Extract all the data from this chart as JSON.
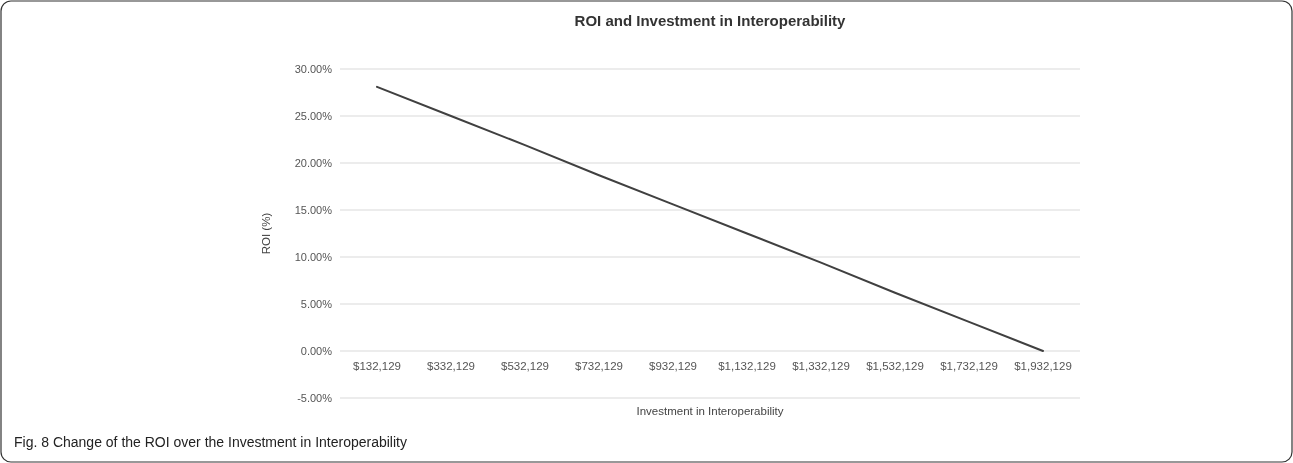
{
  "chart_data": {
    "type": "line",
    "title": "ROI and Investment in Interoperability",
    "xlabel": "Investment in Interoperability",
    "ylabel": "ROI (%)",
    "categories": [
      "$132,129",
      "$332,129",
      "$532,129",
      "$732,129",
      "$932,129",
      "$1,132,129",
      "$1,332,129",
      "$1,532,129",
      "$1,732,129",
      "$1,932,129"
    ],
    "series": [
      {
        "color": "#404040",
        "values": [
          28.1,
          25.0,
          21.9,
          18.7,
          15.6,
          12.5,
          9.4,
          6.2,
          3.1,
          0.0
        ]
      }
    ],
    "ylim": [
      -5,
      30
    ],
    "yticks": [
      {
        "value": -5,
        "label": "-5.00%"
      },
      {
        "value": 0,
        "label": "0.00%"
      },
      {
        "value": 5,
        "label": "5.00%"
      },
      {
        "value": 10,
        "label": "10.00%"
      },
      {
        "value": 15,
        "label": "15.00%"
      },
      {
        "value": 20,
        "label": "20.00%"
      },
      {
        "value": 25,
        "label": "25.00%"
      },
      {
        "value": 30,
        "label": "30.00%"
      }
    ],
    "grid": "y",
    "marker": "none",
    "line_style": "solid",
    "annotations": [
      "Fig. 8 Change of the ROI over the Investment in Interoperability"
    ]
  }
}
